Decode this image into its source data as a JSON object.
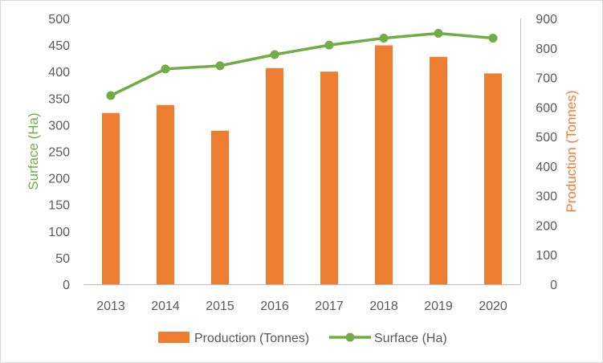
{
  "chart_data": {
    "type": "bar+line",
    "categories": [
      "2013",
      "2014",
      "2015",
      "2016",
      "2017",
      "2018",
      "2019",
      "2020"
    ],
    "series": [
      {
        "name": "Production (Tonnes)",
        "type": "bar",
        "axis": "right",
        "values": [
          580,
          607,
          520,
          732,
          720,
          809,
          770,
          714
        ],
        "color": "#ed7d31"
      },
      {
        "name": "Surface (Ha)",
        "type": "line",
        "axis": "left",
        "values": [
          355,
          405,
          411,
          432,
          450,
          463,
          472,
          463
        ],
        "color": "#70ad47"
      }
    ],
    "y_left": {
      "label": "Surface (Ha)",
      "ylim": [
        0,
        500
      ],
      "ticks": [
        "0",
        "50",
        "100",
        "150",
        "200",
        "250",
        "300",
        "350",
        "400",
        "450",
        "500"
      ],
      "color": "#70ad47"
    },
    "y_right": {
      "label": "Production (Tonnes)",
      "ylim": [
        0,
        900
      ],
      "ticks": [
        "0",
        "100",
        "200",
        "300",
        "400",
        "500",
        "600",
        "700",
        "800",
        "900"
      ],
      "color": "#ed7d31"
    },
    "grid": false,
    "legend": "bottom"
  }
}
